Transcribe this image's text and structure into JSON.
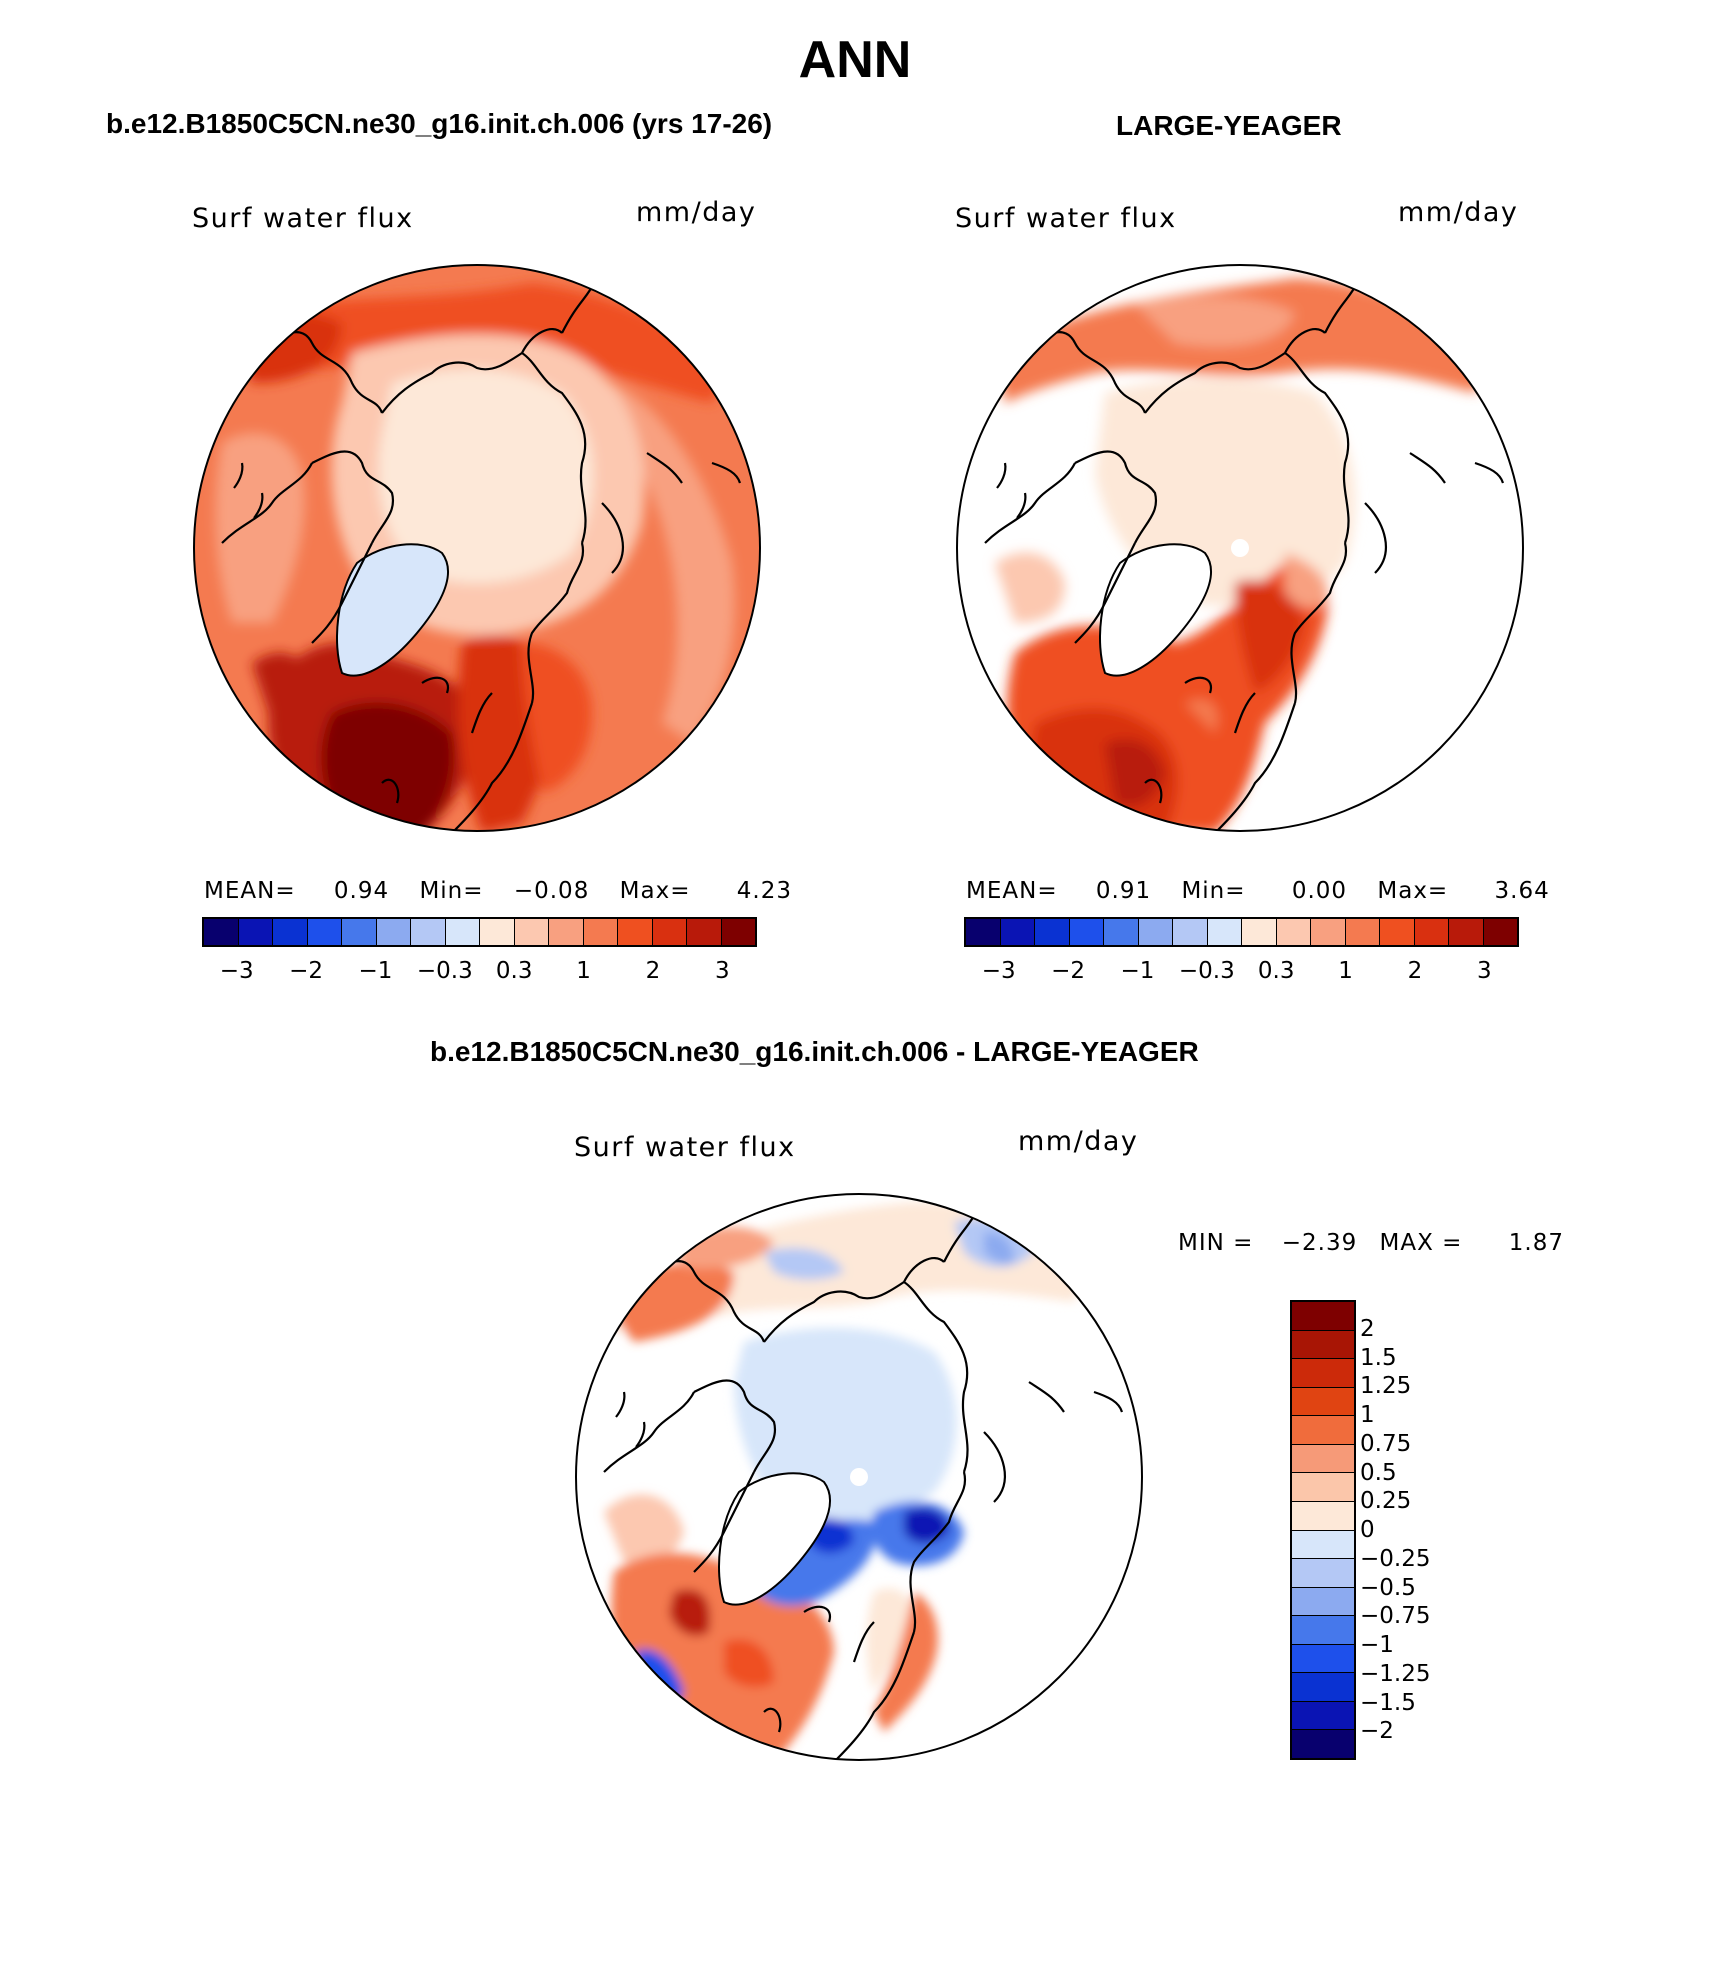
{
  "title": "ANN",
  "panels": [
    {
      "id": "model",
      "case_title": "b.e12.B1850C5CN.ne30_g16.init.ch.006 (yrs 17-26)",
      "variable_label": "Surf water flux",
      "units_label": "mm/day",
      "stats": {
        "mean_label": "MEAN=",
        "mean_value": "0.94",
        "min_label": "Min=",
        "min_value": "−0.08",
        "max_label": "Max=",
        "max_value": "4.23"
      }
    },
    {
      "id": "obs",
      "case_title": "LARGE-YEAGER",
      "variable_label": "Surf water flux",
      "units_label": "mm/day",
      "stats": {
        "mean_label": "MEAN=",
        "mean_value": "0.91",
        "min_label": "Min=",
        "min_value": "0.00",
        "max_label": "Max=",
        "max_value": "3.64"
      }
    },
    {
      "id": "diff",
      "case_title": "b.e12.B1850C5CN.ne30_g16.init.ch.006 - LARGE-YEAGER",
      "variable_label": "Surf water flux",
      "units_label": "mm/day",
      "stats": {
        "min_label": "MIN =",
        "min_value": "−2.39",
        "max_label": "MAX =",
        "max_value": "1.87"
      }
    }
  ],
  "colorbar_top": {
    "colors": [
      "#08006e",
      "#0a14b4",
      "#0a32d2",
      "#1e50eb",
      "#4678eb",
      "#8caaf0",
      "#b4c8f5",
      "#d7e6fa",
      "#fde8d8",
      "#fcc8b0",
      "#f8a080",
      "#f47a50",
      "#ef5020",
      "#d93010",
      "#b81a0a",
      "#7e0000"
    ],
    "ticks": [
      "−3",
      "−2",
      "−1",
      "−0.3",
      "0.3",
      "1",
      "2",
      "3"
    ]
  },
  "colorbar_diff": {
    "colors": [
      "#7e0000",
      "#a81505",
      "#cc2a0a",
      "#e04412",
      "#f06c3c",
      "#f69a78",
      "#fbc6aa",
      "#fde8d8",
      "#d7e6fa",
      "#b4c8f5",
      "#8caaf0",
      "#4678eb",
      "#1e50eb",
      "#0a32d2",
      "#0a14b4",
      "#08006e"
    ],
    "ticks": [
      "2",
      "1.5",
      "1.25",
      "1",
      "0.75",
      "0.5",
      "0.25",
      "0",
      "−0.25",
      "−0.5",
      "−0.75",
      "−1",
      "−1.25",
      "−1.5",
      "−2"
    ]
  }
}
